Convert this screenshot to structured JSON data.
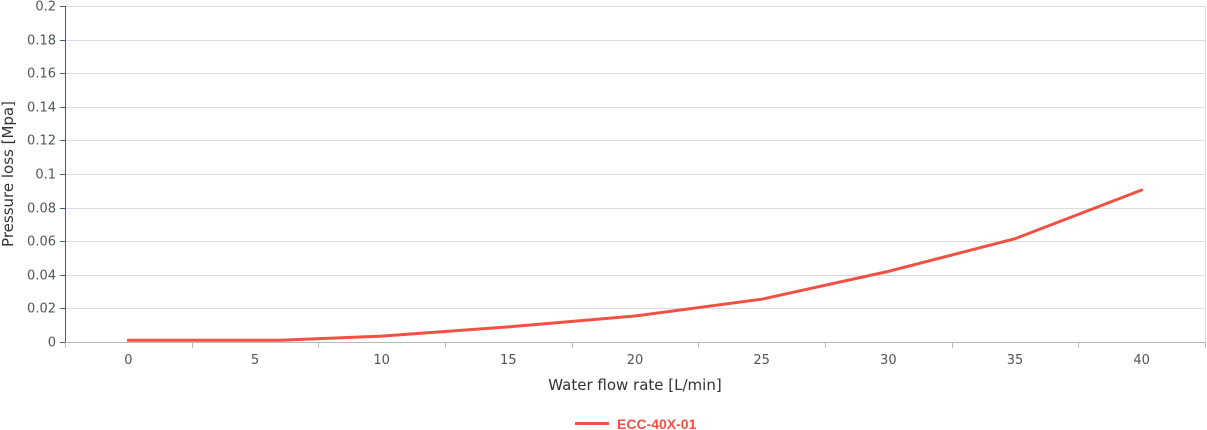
{
  "chart_data": {
    "type": "line",
    "title": "",
    "xlabel": "Water flow rate [L/min]",
    "ylabel": "Pressure loss [Mpa]",
    "xlim": [
      -2.5,
      42.5
    ],
    "ylim": [
      0,
      0.2
    ],
    "x_ticks": [
      0,
      5,
      10,
      15,
      20,
      25,
      30,
      35,
      40
    ],
    "x_tick_labels": [
      "0",
      "5",
      "10",
      "15",
      "20",
      "25",
      "30",
      "35",
      "40"
    ],
    "y_ticks": [
      0,
      0.02,
      0.04,
      0.06,
      0.08,
      0.1,
      0.12,
      0.14,
      0.16,
      0.18,
      0.2
    ],
    "y_tick_labels": [
      "0",
      "0.02",
      "0.04",
      "0.06",
      "0.08",
      "0.1",
      "0.12",
      "0.14",
      "0.16",
      "0.18",
      "0.2"
    ],
    "grid": "horizontal",
    "legend_position": "bottom-center",
    "series": [
      {
        "name": "ECC-40X-01",
        "color": "#f05142",
        "x": [
          0,
          6,
          10,
          15,
          20,
          25,
          30,
          35,
          40
        ],
        "y": [
          0.001,
          0.001,
          0.0035,
          0.009,
          0.0155,
          0.0255,
          0.042,
          0.0615,
          0.0905
        ]
      }
    ]
  }
}
